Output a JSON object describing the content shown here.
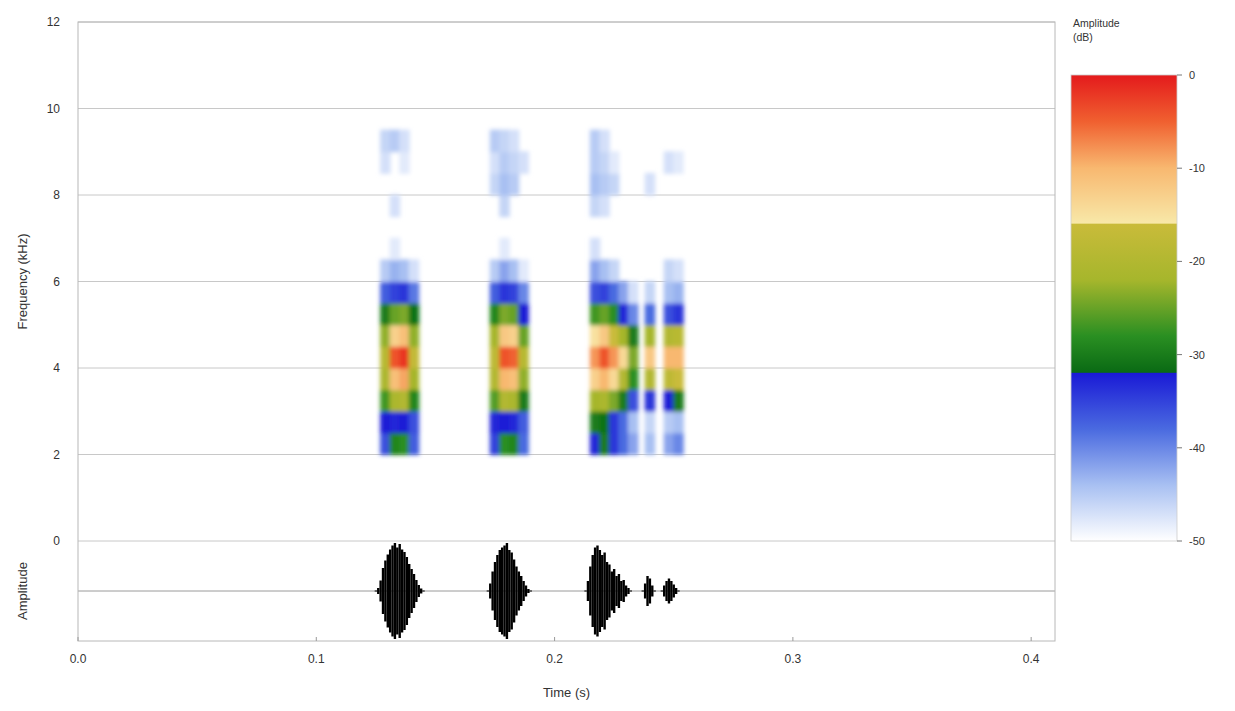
{
  "chart_data": {
    "type": "heatmap",
    "x_label": "Time (s)",
    "y_label": "Frequency (kHz)",
    "xlim": [
      0,
      0.41
    ],
    "xticks": [
      {
        "value": 0,
        "label": "0.0"
      },
      0.1,
      0.2,
      0.3,
      0.4
    ],
    "ylim": [
      0,
      12
    ],
    "yticks": [
      0,
      2,
      4,
      6,
      8,
      10,
      12
    ],
    "grid": true,
    "time_bin": 0.004,
    "frequency_bin": 0.5,
    "time": [
      0.129,
      0.133,
      0.137,
      0.141,
      0.175,
      0.179,
      0.183,
      0.187,
      0.217,
      0.221,
      0.225,
      0.229,
      0.233,
      0.24,
      0.248,
      0.252
    ],
    "frequency": [
      2.25,
      2.75,
      3.25,
      3.75,
      4.25,
      4.75,
      5.25,
      5.75,
      6.25,
      6.75,
      7.25,
      7.75,
      8.25,
      8.75,
      9.25
    ],
    "amplitude": [
      [
        -36,
        -32,
        -27,
        -21,
        -19,
        -23,
        -30,
        -37,
        -45,
        null,
        null,
        null,
        null,
        -47,
        -46
      ],
      [
        -29,
        -33,
        -21,
        -11,
        -4,
        -13,
        -25,
        -35,
        -43,
        -48,
        null,
        -47,
        null,
        null,
        -45
      ],
      [
        -28,
        -32,
        -20,
        -9,
        -2,
        -11,
        -24,
        -34,
        -44,
        null,
        null,
        null,
        null,
        -48,
        -47
      ],
      [
        -37,
        -36,
        -29,
        -22,
        -17,
        -23,
        -31,
        -39,
        -47,
        null,
        null,
        null,
        null,
        null,
        null
      ],
      [
        -35,
        -33,
        -26,
        -20,
        -18,
        -22,
        -29,
        -37,
        -45,
        null,
        null,
        null,
        -46,
        -47,
        -45
      ],
      [
        -28,
        -32,
        -20,
        -10,
        -4,
        -12,
        -24,
        -34,
        -42,
        -48,
        null,
        -46,
        -44,
        -45,
        -46
      ],
      [
        -29,
        -33,
        -21,
        -11,
        -5,
        -13,
        -25,
        -35,
        -44,
        null,
        null,
        null,
        -45,
        -46,
        -47
      ],
      [
        -38,
        -37,
        -30,
        -23,
        -19,
        -25,
        -32,
        -40,
        -48,
        null,
        null,
        null,
        null,
        -47,
        null
      ],
      [
        -33,
        -30,
        -22,
        -13,
        -8,
        -15,
        -27,
        -36,
        -42,
        -47,
        null,
        -46,
        -44,
        -45,
        -45
      ],
      [
        -30,
        -31,
        -21,
        -10,
        -4,
        -12,
        -25,
        -35,
        -44,
        null,
        null,
        -47,
        -45,
        -46,
        -47
      ],
      [
        -34,
        -34,
        -24,
        -14,
        -8,
        -16,
        -28,
        -38,
        -46,
        null,
        null,
        null,
        -46,
        -48,
        null
      ],
      [
        -38,
        -38,
        -30,
        -20,
        -14,
        -22,
        -33,
        -42,
        null,
        null,
        null,
        null,
        null,
        null,
        null
      ],
      [
        -42,
        -44,
        -36,
        -28,
        -24,
        -30,
        -40,
        -47,
        null,
        null,
        null,
        null,
        null,
        null,
        null
      ],
      [
        -44,
        -46,
        -34,
        -20,
        -12,
        -22,
        -38,
        -46,
        null,
        null,
        null,
        null,
        -47,
        null,
        null
      ],
      [
        -42,
        -45,
        -32,
        -18,
        -10,
        -20,
        -36,
        -44,
        -46,
        null,
        null,
        null,
        null,
        -47,
        null
      ],
      [
        -40,
        -44,
        -30,
        -16,
        -10,
        -19,
        -34,
        -43,
        -47,
        null,
        null,
        null,
        null,
        -48,
        null
      ]
    ],
    "colorbar": {
      "label": "Amplitude (dB)",
      "range": [
        -50,
        0
      ],
      "ticks": [
        0,
        -10,
        -20,
        -30,
        -40,
        -50
      ]
    },
    "waveform": {
      "y_label": "Amplitude",
      "ylim": [
        -1,
        1
      ],
      "x": [
        0.125,
        0.126,
        0.127,
        0.128,
        0.129,
        0.13,
        0.131,
        0.132,
        0.133,
        0.134,
        0.135,
        0.136,
        0.137,
        0.138,
        0.139,
        0.14,
        0.141,
        0.142,
        0.143,
        0.144,
        0.145,
        0.172,
        0.173,
        0.174,
        0.175,
        0.176,
        0.177,
        0.178,
        0.179,
        0.18,
        0.181,
        0.182,
        0.183,
        0.184,
        0.185,
        0.186,
        0.187,
        0.188,
        0.189,
        0.19,
        0.213,
        0.214,
        0.215,
        0.216,
        0.217,
        0.218,
        0.219,
        0.22,
        0.221,
        0.222,
        0.223,
        0.224,
        0.225,
        0.226,
        0.227,
        0.228,
        0.229,
        0.23,
        0.231,
        0.232,
        0.237,
        0.238,
        0.239,
        0.24,
        0.241,
        0.242,
        0.245,
        0.246,
        0.247,
        0.248,
        0.249,
        0.25,
        0.251,
        0.252
      ],
      "values": [
        0,
        0.05,
        0.2,
        0.45,
        0.6,
        0.72,
        0.82,
        0.9,
        0.95,
        0.86,
        0.93,
        0.82,
        0.77,
        0.67,
        0.53,
        0.43,
        0.33,
        0.21,
        0.11,
        0.04,
        0,
        0,
        0.14,
        0.38,
        0.57,
        0.71,
        0.81,
        0.86,
        0.9,
        0.95,
        0.81,
        0.76,
        0.62,
        0.48,
        0.38,
        0.29,
        0.19,
        0.1,
        0.03,
        0,
        0,
        0.19,
        0.48,
        0.71,
        0.86,
        0.9,
        0.81,
        0.71,
        0.76,
        0.57,
        0.52,
        0.38,
        0.43,
        0.29,
        0.33,
        0.19,
        0.21,
        0.1,
        0.05,
        0,
        0,
        0.14,
        0.29,
        0.24,
        0.1,
        0,
        0,
        0.1,
        0.19,
        0.24,
        0.19,
        0.12,
        0.05,
        0
      ]
    }
  }
}
